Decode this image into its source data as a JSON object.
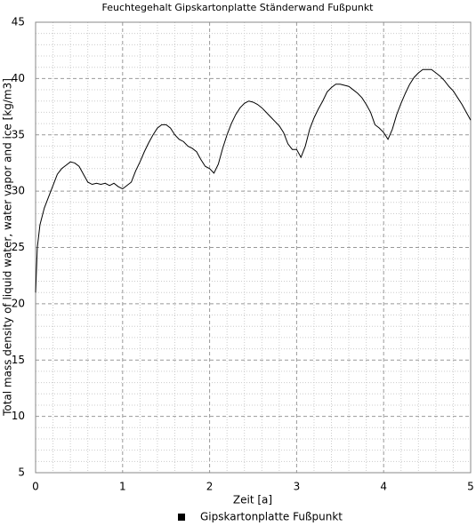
{
  "chart_data": {
    "type": "line",
    "title": "Feuchtegehalt Gipskartonplatte Ständerwand Fußpunkt",
    "x_label": "Zeit [a]",
    "y_label": "Total mass density of liquid water, water vapor and ice [kg/m3]",
    "xlim": [
      0,
      5
    ],
    "ylim": [
      5,
      45
    ],
    "xticks": [
      0,
      1,
      2,
      3,
      4,
      5
    ],
    "yticks": [
      5,
      10,
      15,
      20,
      25,
      30,
      35,
      40,
      45
    ],
    "xminorticks": [
      0.2,
      0.4,
      0.6,
      0.8,
      1.2,
      1.4,
      1.6,
      1.8,
      2.2,
      2.4,
      2.6,
      2.8,
      3.2,
      3.4,
      3.6,
      3.8,
      4.2,
      4.4,
      4.6,
      4.8
    ],
    "yminorticks": [
      6,
      7,
      8,
      9,
      11,
      12,
      13,
      14,
      16,
      17,
      18,
      19,
      21,
      22,
      23,
      24,
      26,
      27,
      28,
      29,
      31,
      32,
      33,
      34,
      36,
      37,
      38,
      39,
      41,
      42,
      43,
      44
    ],
    "grid": true,
    "legend": "bottom",
    "x": [
      0,
      0.02,
      0.05,
      0.1,
      0.15,
      0.2,
      0.25,
      0.3,
      0.35,
      0.4,
      0.45,
      0.5,
      0.55,
      0.6,
      0.65,
      0.7,
      0.75,
      0.8,
      0.85,
      0.9,
      0.95,
      1.0,
      1.05,
      1.1,
      1.15,
      1.2,
      1.25,
      1.3,
      1.35,
      1.4,
      1.45,
      1.5,
      1.55,
      1.6,
      1.65,
      1.7,
      1.75,
      1.8,
      1.85,
      1.9,
      1.95,
      2.0,
      2.05,
      2.1,
      2.15,
      2.2,
      2.25,
      2.3,
      2.35,
      2.4,
      2.45,
      2.5,
      2.55,
      2.6,
      2.65,
      2.7,
      2.75,
      2.8,
      2.85,
      2.9,
      2.95,
      3.0,
      3.05,
      3.1,
      3.15,
      3.2,
      3.25,
      3.3,
      3.35,
      3.4,
      3.45,
      3.5,
      3.55,
      3.6,
      3.65,
      3.7,
      3.75,
      3.8,
      3.85,
      3.9,
      3.95,
      4.0,
      4.05,
      4.1,
      4.15,
      4.2,
      4.25,
      4.3,
      4.35,
      4.4,
      4.45,
      4.5,
      4.55,
      4.6,
      4.65,
      4.7,
      4.75,
      4.8,
      4.85,
      4.9,
      4.95,
      5.0
    ],
    "series": [
      {
        "name": "Gipskartonplatte Fußpunkt",
        "color": "#000000",
        "values": [
          21,
          25,
          27,
          28.5,
          29.5,
          30.5,
          31.5,
          32,
          32.3,
          32.6,
          32.5,
          32.2,
          31.5,
          30.8,
          30.6,
          30.7,
          30.6,
          30.7,
          30.5,
          30.7,
          30.4,
          30.2,
          30.5,
          30.8,
          31.8,
          32.6,
          33.5,
          34.3,
          35.0,
          35.6,
          35.9,
          35.9,
          35.6,
          35.0,
          34.6,
          34.4,
          34.0,
          33.8,
          33.5,
          32.8,
          32.2,
          32.0,
          31.6,
          32.4,
          33.8,
          35.0,
          36.0,
          36.8,
          37.4,
          37.8,
          38.0,
          37.9,
          37.7,
          37.4,
          37.0,
          36.6,
          36.2,
          35.8,
          35.2,
          34.2,
          33.7,
          33.7,
          33.0,
          34.0,
          35.5,
          36.5,
          37.3,
          38.0,
          38.8,
          39.2,
          39.5,
          39.5,
          39.4,
          39.3,
          39.0,
          38.7,
          38.3,
          37.7,
          37.0,
          35.9,
          35.6,
          35.2,
          34.6,
          35.5,
          36.8,
          37.8,
          38.7,
          39.5,
          40.1,
          40.5,
          40.8,
          40.8,
          40.8,
          40.5,
          40.2,
          39.8,
          39.3,
          38.9,
          38.3,
          37.7,
          37.0,
          36.3
        ]
      }
    ]
  }
}
